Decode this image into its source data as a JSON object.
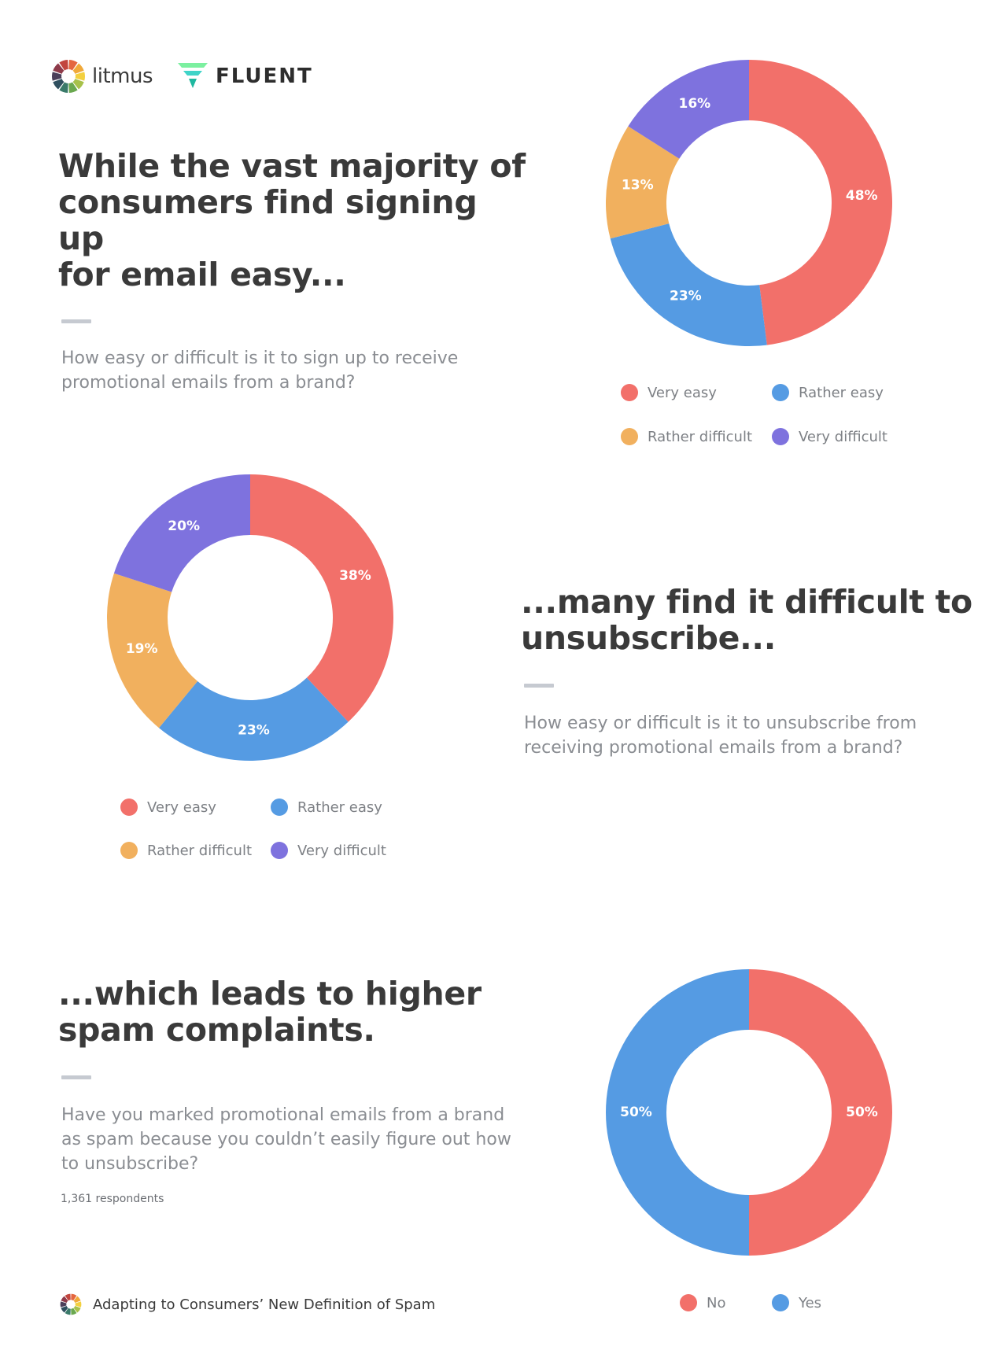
{
  "header": {
    "litmus_logo": {
      "icon": "litmus-wheel-icon",
      "text": "litmus"
    },
    "fluent_logo": {
      "icon": "fluent-chevron-icon",
      "text": "FLUENT"
    }
  },
  "colors": {
    "very_easy": "#f2706a",
    "rather_easy": "#559be3",
    "rather_difficult": "#f1b05e",
    "very_difficult": "#7e72de",
    "no": "#f2706a",
    "yes": "#559be3"
  },
  "section1": {
    "headline": [
      "While the vast majority of",
      "consumers find signing up",
      "for email easy..."
    ],
    "question": [
      "How easy or difficult is it to sign up to receive",
      "promotional emails from a brand?"
    ]
  },
  "section2": {
    "headline": [
      "...many find it difficult to",
      "unsubscribe..."
    ],
    "question": [
      "How easy or difficult is it to unsubscribe from",
      "receiving promotional emails from a brand?"
    ]
  },
  "section3": {
    "headline": [
      "...which leads to higher",
      "spam complaints."
    ],
    "question": [
      "Have you marked promotional emails from a brand",
      "as spam because you couldn’t easily figure out how",
      "to unsubscribe?"
    ],
    "respondents": "1,361  respondents"
  },
  "footer": {
    "icon": "litmus-wheel-icon",
    "text": "Adapting to Consumers’ New Definition of Spam"
  },
  "chart_data": [
    {
      "type": "pie",
      "categories": [
        "Very easy",
        "Rather easy",
        "Rather difficult",
        "Very difficult"
      ],
      "values": [
        48,
        23,
        13,
        16
      ],
      "labels": [
        "48%",
        "23%",
        "13%",
        "16%"
      ],
      "colors": [
        "#f2706a",
        "#559be3",
        "#f1b05e",
        "#7e72de"
      ],
      "legend": "bottom"
    },
    {
      "type": "pie",
      "categories": [
        "Very easy",
        "Rather easy",
        "Rather difficult",
        "Very difficult"
      ],
      "values": [
        38,
        23,
        19,
        20
      ],
      "labels": [
        "38%",
        "23%",
        "19%",
        "20%"
      ],
      "colors": [
        "#f2706a",
        "#559be3",
        "#f1b05e",
        "#7e72de"
      ],
      "legend": "bottom"
    },
    {
      "type": "pie",
      "categories": [
        "No",
        "Yes"
      ],
      "values": [
        50,
        50
      ],
      "labels": [
        "50%",
        "50%"
      ],
      "colors": [
        "#f2706a",
        "#559be3"
      ],
      "legend": "bottom"
    }
  ]
}
